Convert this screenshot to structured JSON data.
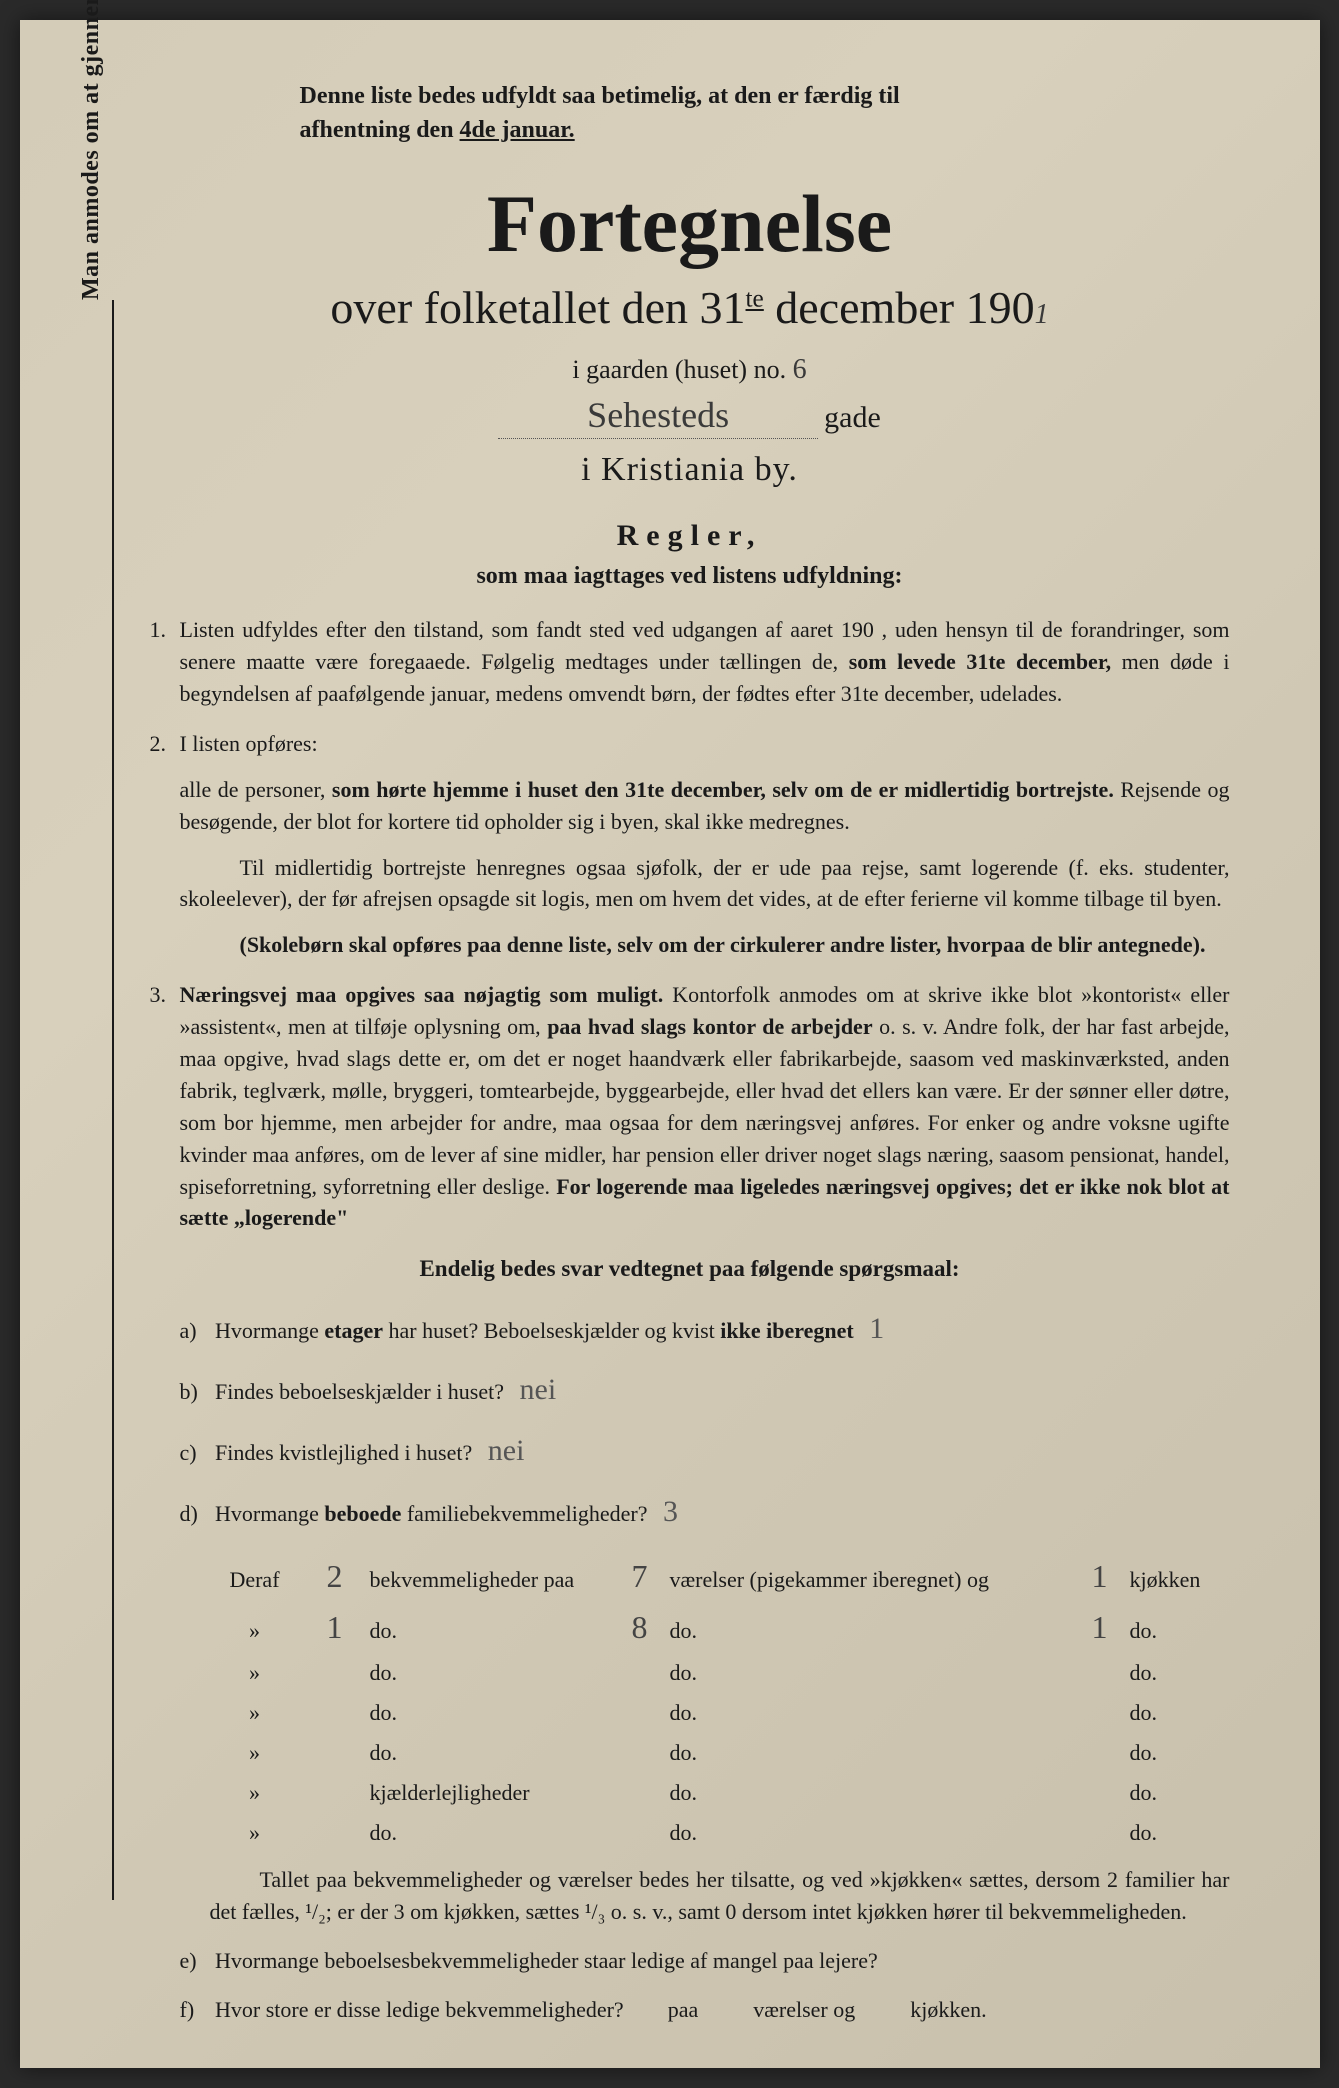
{
  "colors": {
    "paper_bg": "#d4ccb8",
    "text": "#1a1a1a",
    "handwriting": "#444444"
  },
  "typography": {
    "title_size_pt": 82,
    "subtitle_size_pt": 46,
    "body_size_pt": 22,
    "heading_size_pt": 30
  },
  "vertical_note": "Man anmodes om at gjennemlæse og nøje at befølge de paa fortegnelsen trykte overskrifter og anvisninger.",
  "top_note_line1": "Denne liste bedes udfyldt saa betimelig, at den er færdig til",
  "top_note_line2_a": "afhentning den ",
  "top_note_line2_b_underlined": "4de januar.",
  "main_title": "Fortegnelse",
  "subtitle_a": "over folketallet den 31",
  "subtitle_sup": "te",
  "subtitle_b": " december 190",
  "year_handwritten": "1",
  "gaarden_text": "i gaarden (huset) no.",
  "house_no_handwritten": "6",
  "street_handwritten": "Sehesteds",
  "gade_label": "gade",
  "city_line": "i Kristiania by.",
  "regler_heading": "Regler,",
  "regler_sub": "som maa iagttages ved listens udfyldning:",
  "rules": [
    {
      "num": "1.",
      "body": "Listen udfyldes efter den tilstand, som fandt sted ved udgangen af aaret 190   , uden hensyn til de forandringer, som senere maatte være foregaaede. Følgelig medtages under tællingen de, <b>som levede 31te december,</b> men døde i begyndelsen af paafølgende januar, medens omvendt børn, der fødtes efter 31te december, udelades."
    },
    {
      "num": "2.",
      "body": "I listen opføres:",
      "sub1": "alle de personer, <b>som hørte hjemme i huset den 31te december, selv om de er midlertidig bortrejste.</b> Rejsende og besøgende, der blot for kortere tid opholder sig i byen, skal ikke medregnes.",
      "sub2": "Til midlertidig bortrejste henregnes ogsaa sjøfolk, der er ude paa rejse, samt logerende (f. eks. studenter, skoleelever), der før afrejsen opsagde sit logis, men om hvem det vides, at de efter ferierne vil komme tilbage til byen.",
      "sub3_bold": "(Skolebørn skal opføres paa denne liste, selv om der cirkulerer andre lister, hvorpaa de blir antegnede)."
    },
    {
      "num": "3.",
      "body": "<b>Næringsvej maa opgives saa nøjagtig som muligt.</b> Kontorfolk anmodes om at skrive ikke blot »kontorist« eller »assistent«, men at tilføje oplysning om, <b>paa hvad slags kontor de arbejder</b> o. s. v. Andre folk, der har fast arbejde, maa opgive, hvad slags dette er, om det er noget haandværk eller fabrikarbejde, saasom ved maskinværksted, anden fabrik, teglværk, mølle, bryggeri, tomtearbejde, byggearbejde, eller hvad det ellers kan være. Er der sønner eller døtre, som bor hjemme, men arbejder for andre, maa ogsaa for dem næringsvej anføres. For enker og andre voksne ugifte kvinder maa anføres, om de lever af sine midler, har pension eller driver noget slags næring, saasom pensionat, handel, spiseforretning, syforretning eller deslige. <b>For logerende maa ligeledes næringsvej opgives; det er ikke nok blot at sætte „logerende\"</b>"
    }
  ],
  "endelig_heading": "Endelig bedes svar vedtegnet paa følgende spørgsmaal:",
  "questions": {
    "a": {
      "label": "a)",
      "text": "Hvormange <b>etager</b> har huset?   Beboelseskjælder og kvist <b>ikke iberegnet</b>",
      "answer": "1"
    },
    "b": {
      "label": "b)",
      "text": "Findes beboelseskjælder i huset?",
      "answer": "nei"
    },
    "c": {
      "label": "c)",
      "text": "Findes kvistlejlighed i huset?",
      "answer": "nei"
    },
    "d": {
      "label": "d)",
      "text": "Hvormange <b>beboede</b> familiebekvemmeligheder?",
      "answer": "3"
    }
  },
  "deraf_label": "Deraf",
  "deraf_bekv_label": "bekvemmeligheder paa",
  "deraf_vaer_label": "værelser (pigekammer iberegnet) og",
  "deraf_kjok_label": "kjøkken",
  "deraf_do": "do.",
  "deraf_kjaelder": "kjælderlejligheder",
  "deraf_rows": [
    {
      "a": "2",
      "b": "7",
      "c": "1",
      "label1": "bekvemmeligheder paa",
      "label2": "værelser (pigekammer iberegnet) og",
      "label3": "kjøkken"
    },
    {
      "a": "1",
      "b": "8",
      "c": "1",
      "label1": "do.",
      "label2": "do.",
      "label3": "do."
    },
    {
      "a": "",
      "b": "",
      "c": "",
      "label1": "do.",
      "label2": "do.",
      "label3": "do."
    },
    {
      "a": "",
      "b": "",
      "c": "",
      "label1": "do.",
      "label2": "do.",
      "label3": "do."
    },
    {
      "a": "",
      "b": "",
      "c": "",
      "label1": "do.",
      "label2": "do.",
      "label3": "do."
    },
    {
      "a": "",
      "b": "",
      "c": "",
      "label1": "kjælderlejligheder",
      "label2": "do.",
      "label3": "do."
    },
    {
      "a": "",
      "b": "",
      "c": "",
      "label1": "do.",
      "label2": "do.",
      "label3": "do."
    }
  ],
  "bottom_para": "Tallet paa bekvemmeligheder og værelser bedes her tilsatte, og ved »kjøkken« sættes, dersom 2 familier har det fælles, ¹/₂; er der 3 om kjøkken, sættes ¹/₃ o. s. v., samt 0 dersom intet kjøkken hører til bekvemmeligheden.",
  "question_e": {
    "label": "e)",
    "text": "Hvormange beboelsesbekvemmeligheder staar ledige af mangel paa lejere?"
  },
  "question_f": {
    "label": "f)",
    "text": "Hvor store er disse ledige bekvemmeligheder?",
    "suffix1": "paa",
    "suffix2": "værelser og",
    "suffix3": "kjøkken."
  }
}
